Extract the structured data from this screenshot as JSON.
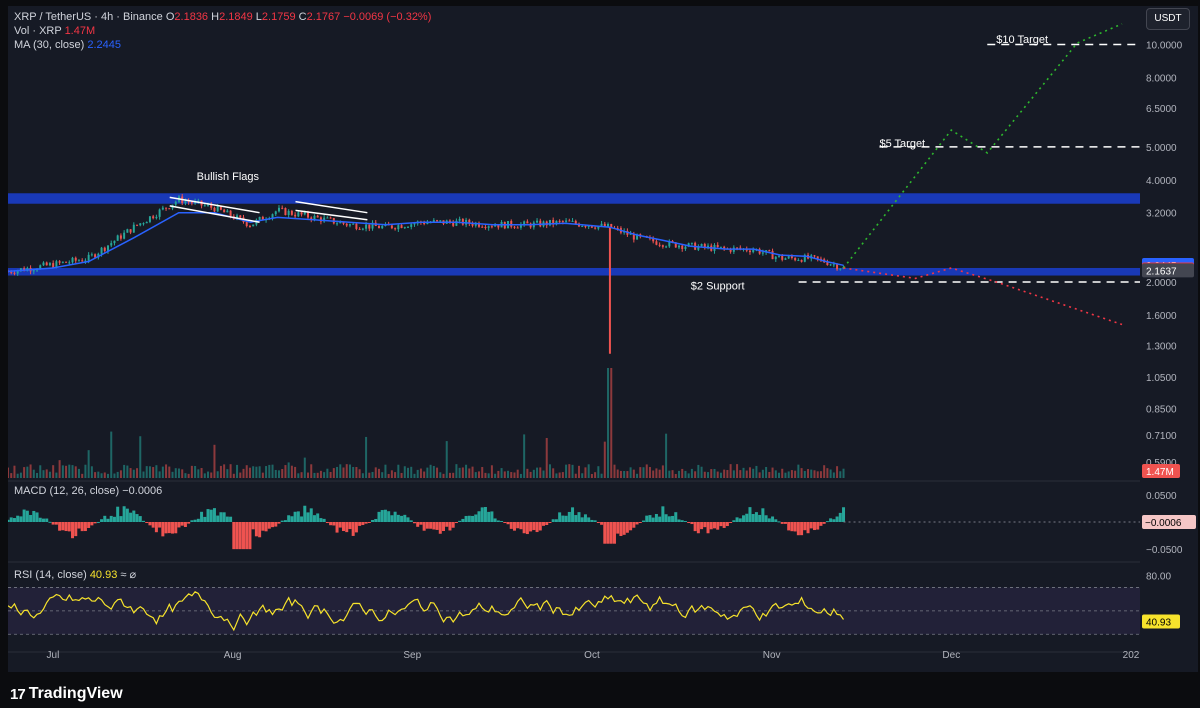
{
  "header": {
    "symbol": "XRP / TetherUS · 4h · Binance",
    "open_label": "O",
    "open": "2.1836",
    "high_label": "H",
    "high": "2.1849",
    "low_label": "L",
    "low": "2.1759",
    "close_label": "C",
    "close": "2.1767",
    "change": "−0.0069 (−0.32%)",
    "vol_label": "Vol · XRP",
    "vol": "1.47M",
    "ma_label": "MA (30, close)",
    "ma": "2.2445"
  },
  "currency_button": "USDT",
  "macd": {
    "label": "MACD (12, 26, close)",
    "value": "−0.0006"
  },
  "rsi": {
    "label": "RSI (14, close)",
    "value": "40.93",
    "suffix": "≈ ⌀"
  },
  "brand": {
    "mark": "17",
    "name": "TradingView"
  },
  "colors": {
    "background": "#161a25",
    "candle_up": "#26a69a",
    "candle_down": "#ef5350",
    "ma_line": "#2962ff",
    "zone": "#1a3dc8",
    "bull_path": "#2eb82e",
    "bear_path": "#f23645",
    "rsi_line": "#f7e32c"
  },
  "chart_data": [
    {
      "type": "line",
      "title": "XRP / TetherUS · 4h · Binance",
      "y_scale": "log",
      "y_ticks": [
        "10.0000",
        "8.0000",
        "6.5000",
        "5.0000",
        "4.0000",
        "3.2000",
        "2.0000",
        "1.6000",
        "1.3000",
        "1.0500",
        "0.8500",
        "0.7100",
        "0.5900"
      ],
      "y_tick_values": [
        10,
        8,
        6.5,
        5,
        4,
        3.2,
        2,
        1.6,
        1.3,
        1.05,
        0.85,
        0.71,
        0.59
      ],
      "ylim": [
        0.53,
        12.3
      ],
      "x_ticks": [
        "Jul",
        "Aug",
        "Sep",
        "Oct",
        "Nov",
        "Dec",
        "202"
      ],
      "x_tick_positions": [
        0.5,
        1.5,
        2.5,
        3.5,
        4.5,
        5.5,
        6.5
      ],
      "xlim": [
        0.25,
        6.55
      ],
      "series": [
        {
          "values": [
            2.15,
            2.25,
            2.35,
            2.9,
            3.5,
            3.3,
            2.95,
            3.25,
            3.1,
            2.95,
            2.9,
            3.0,
            3.0,
            2.95,
            2.95,
            3.0,
            2.9,
            2.7,
            2.6,
            2.55,
            2.5,
            2.5,
            2.35,
            2.35,
            2.3,
            2.2
          ],
          "x": [
            0.25,
            0.5,
            0.7,
            0.95,
            1.2,
            1.4,
            1.6,
            1.75,
            1.95,
            2.15,
            2.35,
            2.55,
            2.75,
            2.95,
            3.15,
            3.35,
            3.6,
            3.75,
            3.9,
            4.05,
            4.25,
            4.4,
            4.55,
            4.7,
            4.8,
            4.9
          ]
        },
        {
          "name": "MA (30, close)",
          "values": [
            2.15,
            2.2,
            2.3,
            2.7,
            3.2,
            3.2,
            3.0,
            3.1,
            3.05,
            3.0,
            2.95,
            3.0,
            3.0,
            2.95,
            2.95,
            2.98,
            2.9,
            2.75,
            2.65,
            2.55,
            2.5,
            2.5,
            2.4,
            2.38,
            2.3,
            2.24
          ],
          "x": [
            0.25,
            0.5,
            0.7,
            0.95,
            1.2,
            1.4,
            1.6,
            1.75,
            1.95,
            2.15,
            2.35,
            2.55,
            2.75,
            2.95,
            3.15,
            3.35,
            3.6,
            3.75,
            3.9,
            4.05,
            4.25,
            4.4,
            4.55,
            4.7,
            4.8,
            4.9
          ]
        }
      ],
      "wick": {
        "x": 3.6,
        "low": 1.23,
        "high": 2.9
      },
      "zones": [
        {
          "low": 3.4,
          "high": 3.65
        },
        {
          "low": 2.09,
          "high": 2.2
        }
      ],
      "projection_bull": {
        "x": [
          4.9,
          5.5,
          5.7,
          6.2,
          6.45
        ],
        "y": [
          2.2,
          5.6,
          4.8,
          10.1,
          11.5
        ]
      },
      "projection_bear": {
        "x": [
          4.9,
          5.3,
          5.5,
          5.75,
          6.45
        ],
        "y": [
          2.2,
          2.05,
          2.2,
          2.0,
          1.5
        ]
      },
      "flags": [
        {
          "x1": 1.15,
          "x2": 1.65,
          "top1": 3.55,
          "top2": 3.2,
          "bot1": 3.35,
          "bot2": 3.0
        },
        {
          "x1": 1.85,
          "x2": 2.25,
          "top1": 3.45,
          "top2": 3.2,
          "bot1": 3.25,
          "bot2": 3.05
        }
      ],
      "annotations": [
        {
          "text": "Bullish Flags",
          "x": 1.3,
          "y": 4.0
        },
        {
          "text": "$2 Support",
          "x": 4.05,
          "y": 1.9
        },
        {
          "text": "$5 Target",
          "x": 5.1,
          "y": 5.0
        },
        {
          "text": "$10 Target",
          "x": 5.75,
          "y": 10.1
        }
      ],
      "levels": [
        {
          "y": 10,
          "x_from": 5.7
        },
        {
          "y": 5,
          "x_from": 5.1
        },
        {
          "y": 2.0,
          "x_from": 4.65
        }
      ],
      "price_tags": [
        {
          "text": "2.2445",
          "y": 2.2445,
          "color": "#2962ff"
        },
        {
          "text": "2.1767",
          "y": 2.1767,
          "color": "#f23645"
        },
        {
          "text": "2.1637",
          "y": 2.1637,
          "color": "#434651"
        }
      ],
      "volume_tag": "1.47M"
    },
    {
      "type": "bar",
      "title": "MACD (12, 26, close)",
      "y_ticks": [
        "0.0500",
        "−0.0500"
      ],
      "y_tick_values": [
        0.05,
        -0.05
      ],
      "ylim": [
        -0.07,
        0.07
      ],
      "current": "−0.0006"
    },
    {
      "type": "line",
      "title": "RSI (14, close)",
      "y_ticks": [
        "80.00"
      ],
      "y_tick_values": [
        80
      ],
      "ylim": [
        20,
        90
      ],
      "band": [
        30,
        70
      ],
      "current": "40.93"
    }
  ]
}
